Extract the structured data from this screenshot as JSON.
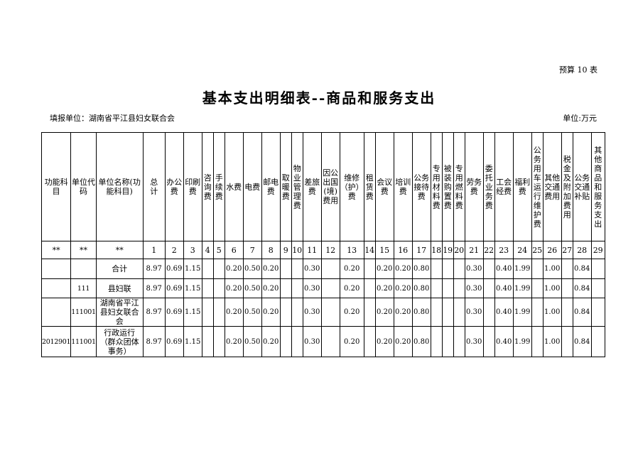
{
  "header": {
    "sheet_note": "预算 10 表",
    "title": "基本支出明细表--商品和服务支出",
    "report_unit": "填报单位：湖南省平江县妇女联合会",
    "unit_note": "单位:万元"
  },
  "table": {
    "columns": [
      "功能科目",
      "单位代码",
      "单位名称(功能科目)",
      "总计",
      "办公费",
      "印刷费",
      "咨询费",
      "手续费",
      "水费",
      "电费",
      "邮电费",
      "取暖费",
      "物业管理费",
      "差旅费",
      "因公出国(境)费用",
      "维修（护）费",
      "租赁费",
      "会议费",
      "培训费",
      "公务接待费",
      "专用材料费",
      "被装购置费",
      "专用燃料费",
      "劳务费",
      "委托业务费",
      "工会经费",
      "福利费",
      "公务用车运行维护费",
      "其他交通费用",
      "税金及附加费用",
      "公务交通补贴",
      "其他商品和服务支出"
    ],
    "codes": [
      "**",
      "**",
      "**",
      "1",
      "2",
      "3",
      "4",
      "5",
      "6",
      "7",
      "8",
      "9",
      "10",
      "11",
      "12",
      "13",
      "14",
      "15",
      "16",
      "17",
      "18",
      "19",
      "20",
      "21",
      "22",
      "23",
      "24",
      "25",
      "26",
      "27",
      "28",
      "29"
    ],
    "rows": [
      [
        "",
        "",
        "合计",
        "8.97",
        "0.69",
        "1.15",
        "",
        "",
        "0.20",
        "0.50",
        "0.20",
        "",
        "",
        "0.30",
        "",
        "0.20",
        "",
        "0.20",
        "0.20",
        "0.80",
        "",
        "",
        "",
        "0.30",
        "",
        "0.40",
        "1.99",
        "",
        "1.00",
        "",
        "0.84",
        ""
      ],
      [
        "",
        "111",
        "县妇联",
        "8.97",
        "0.69",
        "1.15",
        "",
        "",
        "0.20",
        "0.50",
        "0.20",
        "",
        "",
        "0.30",
        "",
        "0.20",
        "",
        "0.20",
        "0.20",
        "0.80",
        "",
        "",
        "",
        "0.30",
        "",
        "0.40",
        "1.99",
        "",
        "1.00",
        "",
        "0.84",
        ""
      ],
      [
        "",
        "111001",
        "湖南省平江县妇女联合会",
        "8.97",
        "0.69",
        "1.15",
        "",
        "",
        "0.20",
        "0.50",
        "0.20",
        "",
        "",
        "0.30",
        "",
        "0.20",
        "",
        "0.20",
        "0.20",
        "0.80",
        "",
        "",
        "",
        "0.30",
        "",
        "0.40",
        "1.99",
        "",
        "1.00",
        "",
        "0.84",
        ""
      ],
      [
        "2012901",
        "111001",
        "行政运行（群众团体事务）",
        "8.97",
        "0.69",
        "1.15",
        "",
        "",
        "0.20",
        "0.50",
        "0.20",
        "",
        "",
        "0.30",
        "",
        "0.20",
        "",
        "0.20",
        "0.20",
        "0.80",
        "",
        "",
        "",
        "0.30",
        "",
        "0.40",
        "1.99",
        "",
        "1.00",
        "",
        "0.84",
        ""
      ]
    ]
  }
}
